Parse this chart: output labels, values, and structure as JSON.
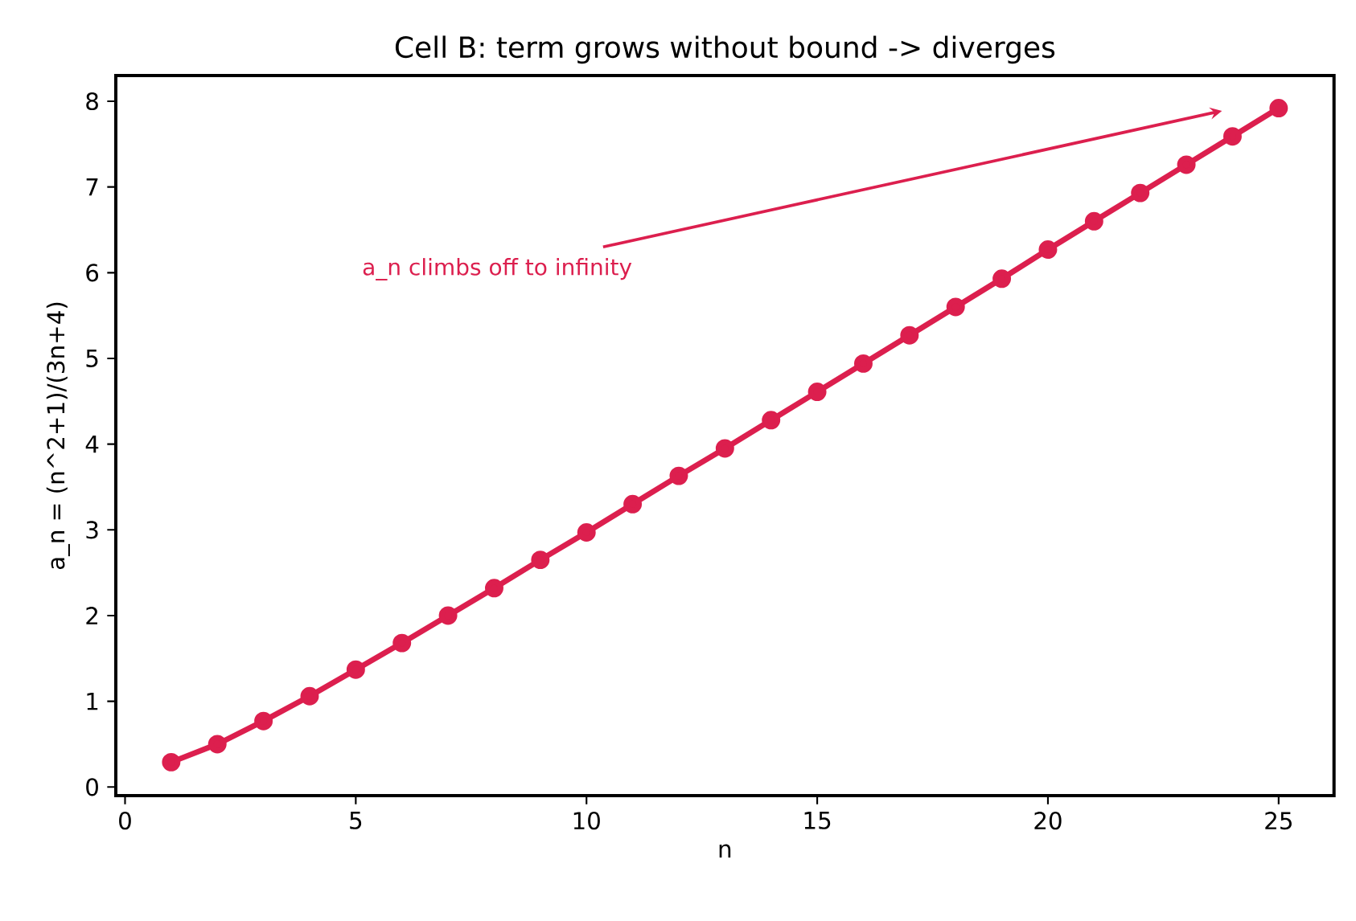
{
  "chart_data": {
    "type": "line",
    "title": "Cell B: term grows without bound  ->  diverges",
    "xlabel": "n",
    "ylabel": "a_n = (n^2+1)/(3n+4)",
    "x": [
      1,
      2,
      3,
      4,
      5,
      6,
      7,
      8,
      9,
      10,
      11,
      12,
      13,
      14,
      15,
      16,
      17,
      18,
      19,
      20,
      21,
      22,
      23,
      24,
      25
    ],
    "values": [
      0.29,
      0.5,
      0.77,
      1.06,
      1.37,
      1.68,
      2.0,
      2.32,
      2.65,
      2.97,
      3.3,
      3.63,
      3.95,
      4.28,
      4.61,
      4.94,
      5.27,
      5.6,
      5.93,
      6.27,
      6.6,
      6.93,
      7.26,
      7.59,
      7.92
    ],
    "color": "#dc1f4e",
    "marker": "circle",
    "line_style": "solid",
    "grid": false,
    "xlim": [
      -0.2,
      26.2
    ],
    "ylim": [
      -0.1,
      8.3
    ],
    "xticks": [
      0,
      5,
      10,
      15,
      20,
      25
    ],
    "yticks": [
      0,
      1,
      2,
      3,
      4,
      5,
      6,
      7,
      8
    ],
    "annotations": [
      "a_n climbs off to infinity"
    ]
  }
}
